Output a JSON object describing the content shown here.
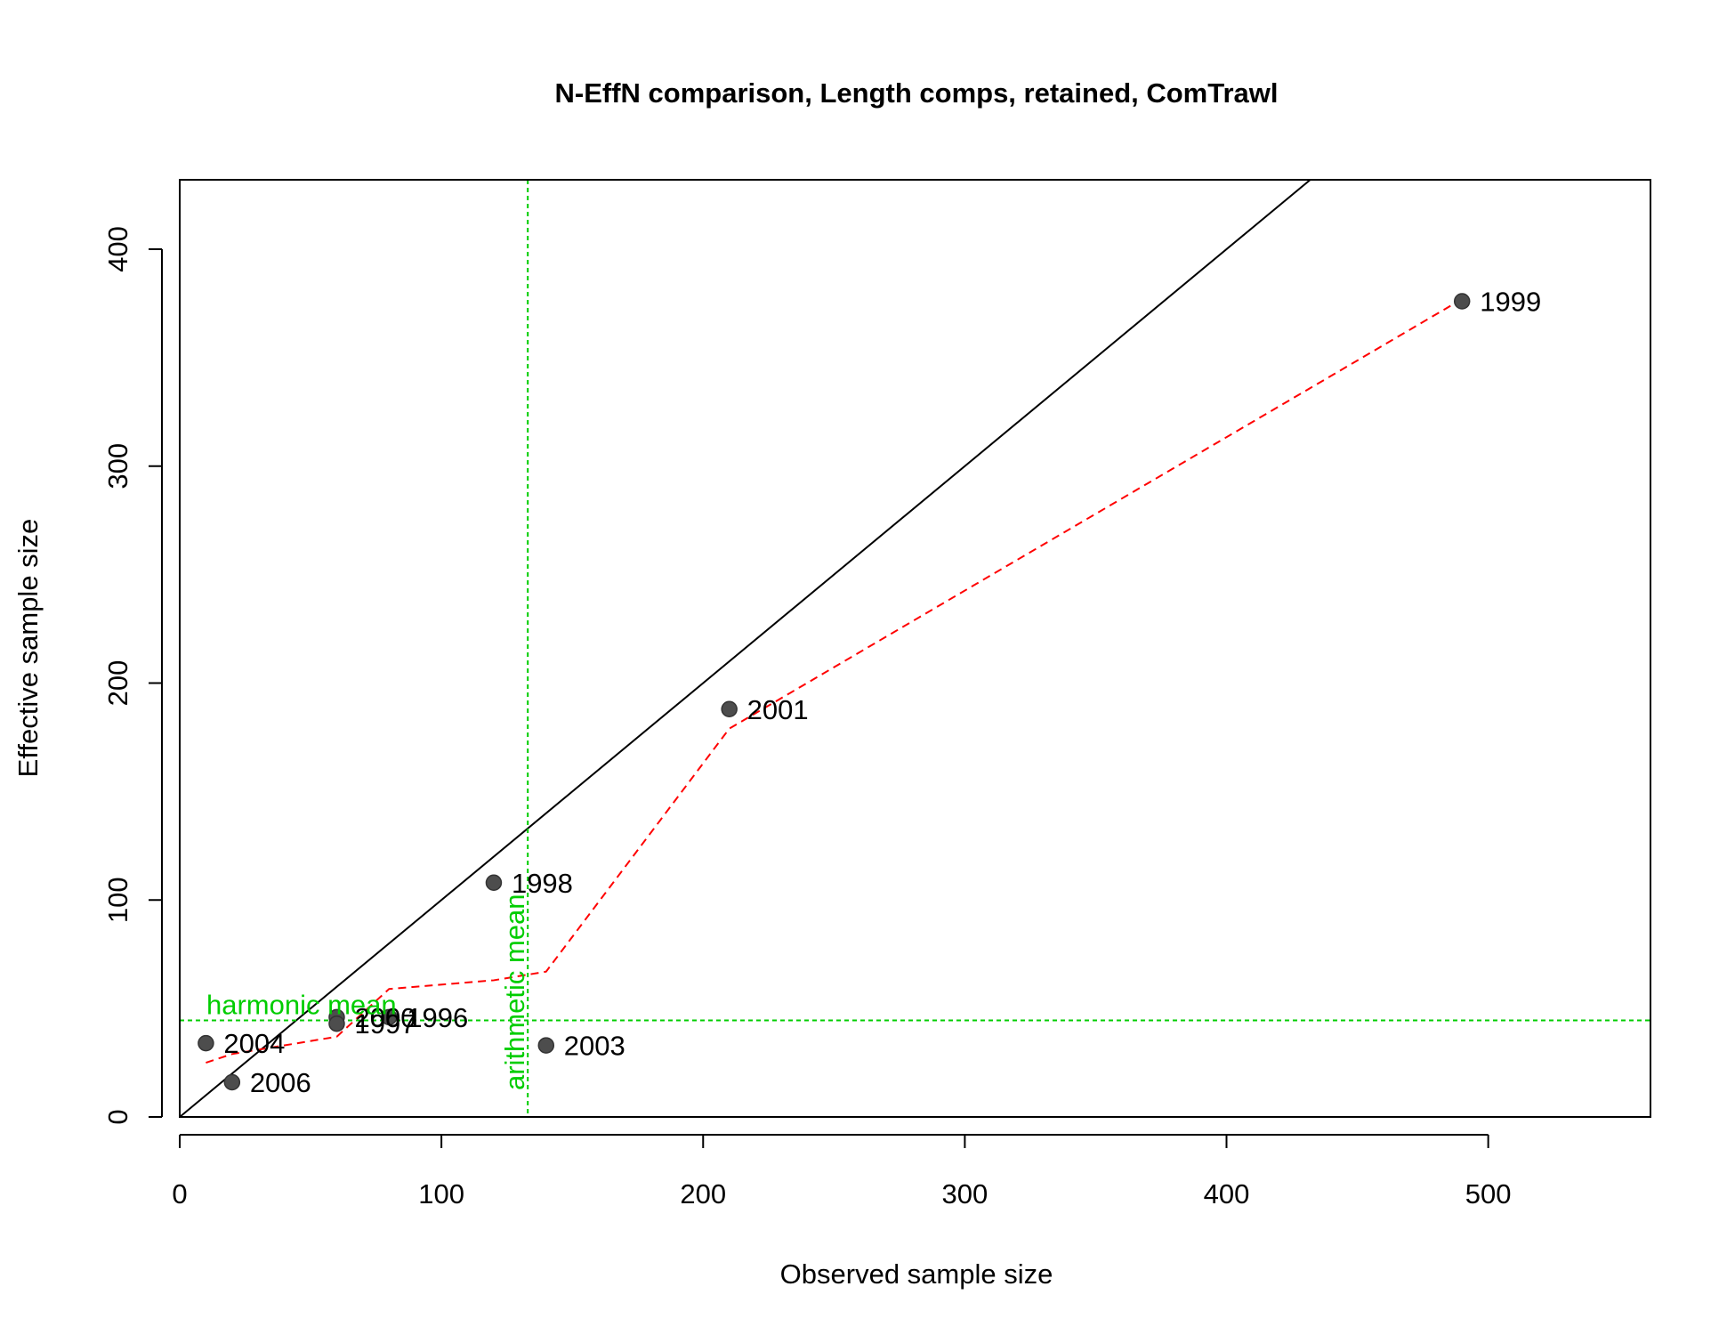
{
  "chart_data": {
    "type": "scatter",
    "title": "N-EffN comparison, Length comps, retained, ComTrawl",
    "xlabel": "Observed sample size",
    "ylabel": "Effective sample size",
    "xlim": [
      0,
      562
    ],
    "ylim": [
      0,
      432
    ],
    "x_ticks": [
      "0",
      "100",
      "200",
      "300",
      "400",
      "500"
    ],
    "y_ticks": [
      "0",
      "100",
      "200",
      "300",
      "400"
    ],
    "points": [
      {
        "label": "1999",
        "x": 490,
        "y": 376
      },
      {
        "label": "2001",
        "x": 210,
        "y": 188
      },
      {
        "label": "1998",
        "x": 120,
        "y": 108
      },
      {
        "label": "2003",
        "x": 140,
        "y": 33
      },
      {
        "label": "2004",
        "x": 10,
        "y": 34
      },
      {
        "label": "2006",
        "x": 20,
        "y": 16
      },
      {
        "label": "2000",
        "x": 60,
        "y": 46
      },
      {
        "label": "1997",
        "x": 60,
        "y": 43
      },
      {
        "label": "1996",
        "x": 80,
        "y": 46
      }
    ],
    "reference_lines": {
      "one_to_one": true,
      "harmonic_mean": {
        "label": "harmonic mean",
        "value": 44.5,
        "color": "#00cd00"
      },
      "arithmetic_mean": {
        "label": "arithmetic mean",
        "value": 133,
        "color": "#00cd00"
      }
    },
    "smoother": {
      "color": "#ff0000",
      "x": [
        10,
        20,
        60,
        80,
        120,
        140,
        210,
        490
      ],
      "y": [
        25,
        29,
        37,
        59,
        63,
        67,
        179,
        377
      ]
    },
    "point_color": "#4d4d4d",
    "grid": false
  }
}
